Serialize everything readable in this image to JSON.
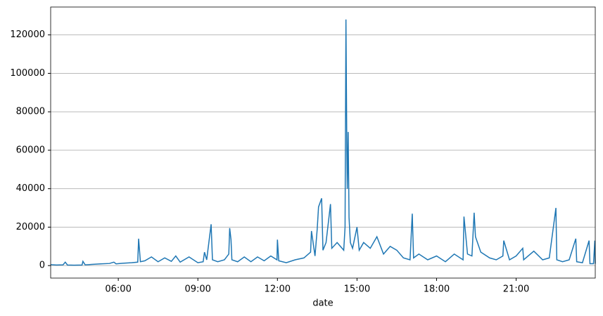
{
  "chart_data": {
    "type": "line",
    "x_label": "date",
    "x": [
      "03:27",
      "03:40",
      "03:55",
      "04:00",
      "04:05",
      "04:20",
      "04:38",
      "04:40",
      "04:45",
      "05:00",
      "05:20",
      "05:40",
      "05:50",
      "05:55",
      "06:10",
      "06:30",
      "06:44",
      "06:46",
      "06:50",
      "07:00",
      "07:15",
      "07:30",
      "07:45",
      "08:00",
      "08:10",
      "08:20",
      "08:40",
      "09:00",
      "09:12",
      "09:15",
      "09:20",
      "09:30",
      "09:33",
      "09:45",
      "10:00",
      "10:10",
      "10:12",
      "10:15",
      "10:17",
      "10:30",
      "10:45",
      "11:00",
      "11:15",
      "11:30",
      "11:45",
      "11:59",
      "12:00",
      "12:03",
      "12:20",
      "12:40",
      "13:00",
      "13:15",
      "13:17",
      "13:25",
      "13:30",
      "13:33",
      "13:40",
      "13:43",
      "13:50",
      "14:00",
      "14:03",
      "14:15",
      "14:30",
      "14:33",
      "14:35",
      "14:37",
      "14:38",
      "14:40",
      "14:42",
      "14:45",
      "14:50",
      "15:00",
      "15:05",
      "15:15",
      "15:30",
      "15:45",
      "16:00",
      "16:15",
      "16:30",
      "16:45",
      "17:00",
      "17:05",
      "17:08",
      "17:20",
      "17:40",
      "18:00",
      "18:20",
      "18:40",
      "19:00",
      "19:02",
      "19:10",
      "19:20",
      "19:25",
      "19:28",
      "19:40",
      "20:00",
      "20:15",
      "20:30",
      "20:32",
      "20:45",
      "21:00",
      "21:15",
      "21:17",
      "21:40",
      "22:00",
      "22:15",
      "22:30",
      "22:32",
      "22:45",
      "23:00",
      "23:15",
      "23:17",
      "23:30",
      "23:45",
      "23:47",
      "23:55",
      "23:58",
      "23:59"
    ],
    "series": [
      {
        "color": "#1f77b4",
        "values": [
          500,
          300,
          400,
          1800,
          300,
          200,
          300,
          2200,
          400,
          600,
          900,
          1100,
          1800,
          900,
          1200,
          1500,
          1800,
          14000,
          2000,
          2500,
          4500,
          2000,
          4000,
          2200,
          5000,
          1800,
          4500,
          1500,
          2000,
          7000,
          3000,
          21500,
          3000,
          2000,
          3000,
          6000,
          19500,
          13500,
          3000,
          2000,
          4500,
          2000,
          4500,
          2500,
          5000,
          3000,
          13500,
          2500,
          1500,
          3000,
          4000,
          7000,
          18000,
          5000,
          19000,
          30500,
          35000,
          8000,
          12000,
          32000,
          9000,
          12000,
          8000,
          20000,
          128000,
          60000,
          40000,
          69500,
          25000,
          12000,
          9000,
          20000,
          8000,
          12000,
          9000,
          15000,
          6000,
          10000,
          8000,
          4000,
          3000,
          27000,
          4000,
          6000,
          3000,
          5000,
          2000,
          6000,
          3000,
          25500,
          6000,
          5000,
          27500,
          15000,
          7000,
          4000,
          3000,
          5000,
          13000,
          3000,
          5000,
          9000,
          3000,
          7500,
          3000,
          4000,
          30000,
          3000,
          2000,
          3000,
          14000,
          2000,
          1500,
          13000,
          1000,
          1000,
          13000,
          1000
        ]
      }
    ],
    "xlim": [
      "03:27",
      "23:59"
    ],
    "xticks": [
      "06:00",
      "09:00",
      "12:00",
      "15:00",
      "18:00",
      "21:00"
    ],
    "ylim": [
      -6500,
      134500
    ],
    "yticks": [
      0,
      20000,
      40000,
      60000,
      80000,
      100000,
      120000
    ],
    "grid": true
  }
}
